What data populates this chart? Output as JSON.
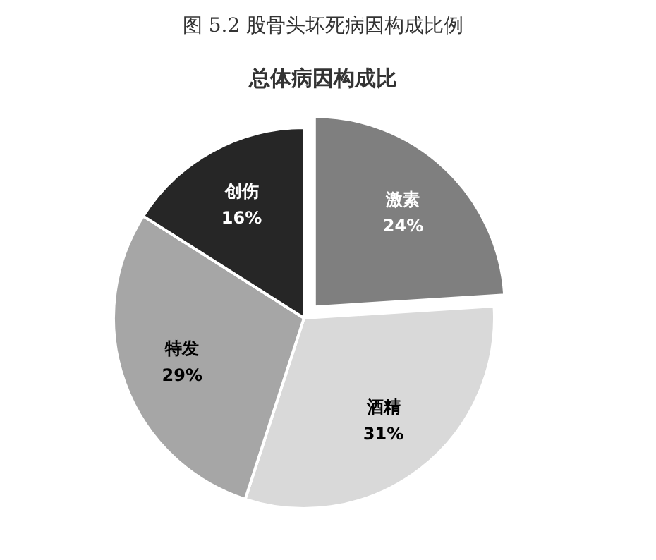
{
  "chart_data": {
    "type": "pie",
    "title": "总体病因构成比",
    "annotations": [
      "图 5.2 股骨头坏死病因构成比例"
    ],
    "categories": [
      "激素",
      "酒精",
      "特发",
      "创伤"
    ],
    "values": [
      24,
      31,
      29,
      16
    ],
    "value_labels": [
      "24%",
      "31%",
      "29%",
      "16%"
    ],
    "colors": [
      "#7f7f7f",
      "#d9d9d9",
      "#a6a6a6",
      "#262626"
    ]
  }
}
